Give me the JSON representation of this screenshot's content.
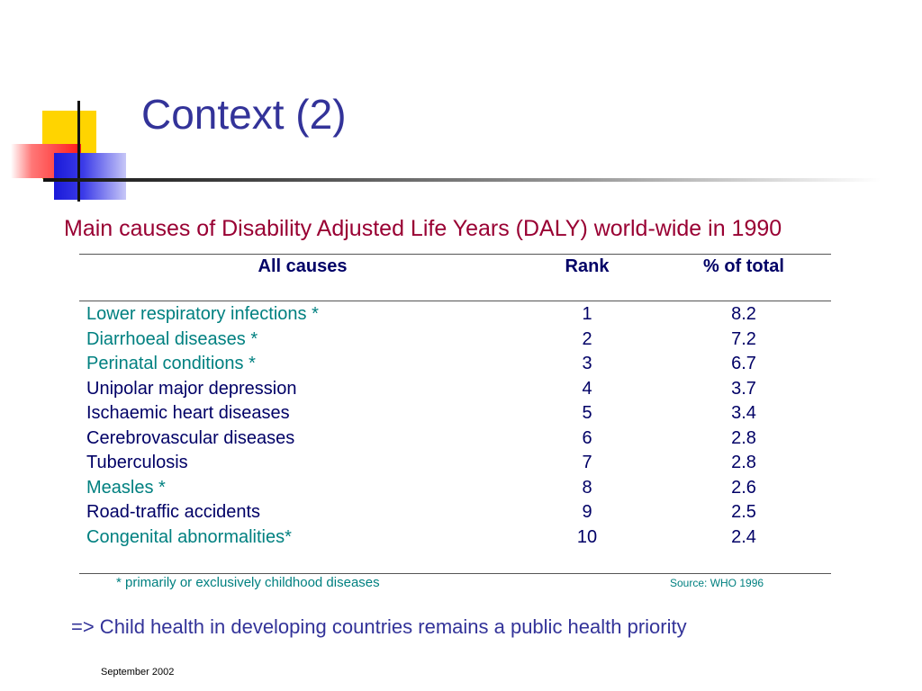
{
  "slide": {
    "title": "Context (2)",
    "subtitle": "Main causes of Disability Adjusted Life Years (DALY) world-wide in 1990",
    "table": {
      "headers": {
        "cause": "All causes",
        "rank": "Rank",
        "pct": "% of total"
      },
      "rows": [
        {
          "cause": "Lower respiratory infections *",
          "rank": "1",
          "pct": "8.2",
          "childhood": true
        },
        {
          "cause": "Diarrhoeal diseases *",
          "rank": "2",
          "pct": "7.2",
          "childhood": true
        },
        {
          "cause": "Perinatal conditions *",
          "rank": "3",
          "pct": "6.7",
          "childhood": true
        },
        {
          "cause": "Unipolar major depression",
          "rank": "4",
          "pct": "3.7",
          "childhood": false
        },
        {
          "cause": "Ischaemic heart diseases",
          "rank": "5",
          "pct": "3.4",
          "childhood": false
        },
        {
          "cause": "Cerebrovascular diseases",
          "rank": "6",
          "pct": "2.8",
          "childhood": false
        },
        {
          "cause": "Tuberculosis",
          "rank": "7",
          "pct": "2.8",
          "childhood": false
        },
        {
          "cause": "Measles *",
          "rank": "8",
          "pct": "2.6",
          "childhood": true
        },
        {
          "cause": "Road-traffic accidents",
          "rank": "9",
          "pct": "2.5",
          "childhood": false
        },
        {
          "cause": "Congenital abnormalities*",
          "rank": "10",
          "pct": "2.4",
          "childhood": true
        }
      ]
    },
    "footnote": "* primarily or exclusively childhood diseases",
    "source": "Source: WHO 1996",
    "conclusion": "=> Child health in developing countries remains a public health priority",
    "date": "September 2002"
  },
  "colors": {
    "title": "#333399",
    "subtitle": "#990033",
    "childhood": "#008080",
    "default_text": "#000066"
  }
}
